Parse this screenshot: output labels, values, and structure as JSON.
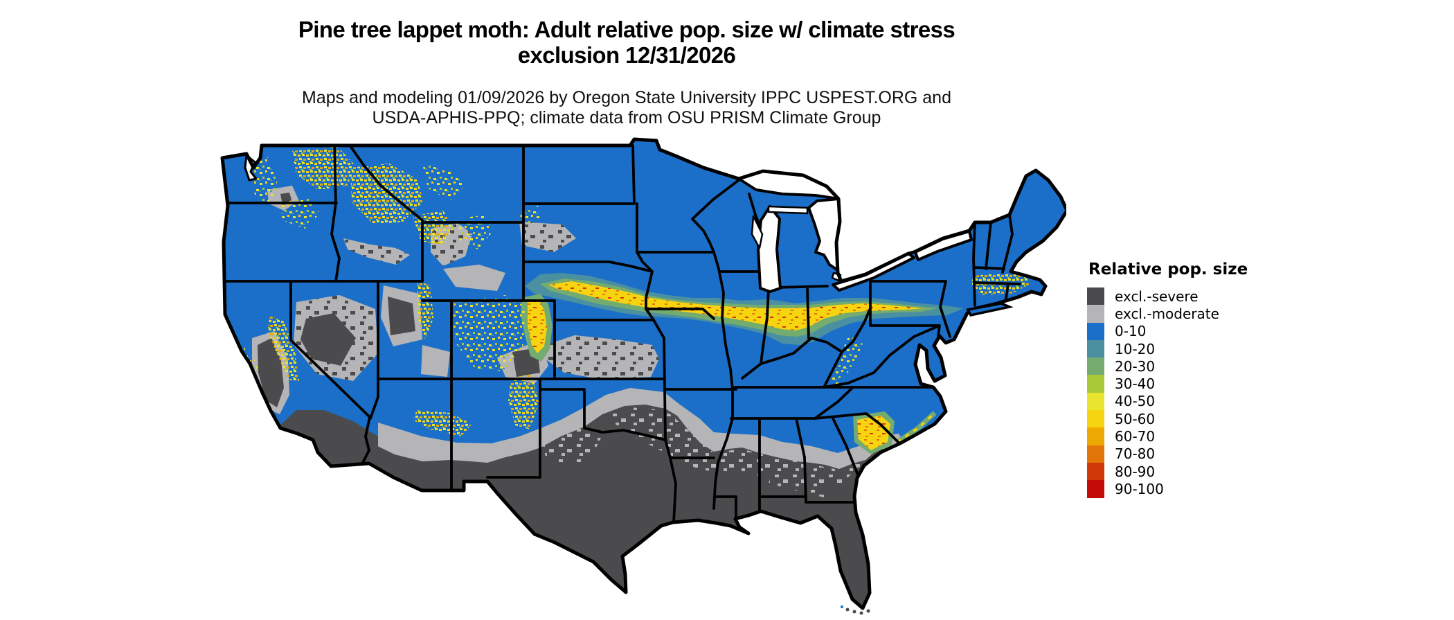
{
  "header": {
    "title_line1": "Pine tree lappet moth: Adult relative pop. size w/ climate stress",
    "title_line2": "exclusion 12/31/2026",
    "subtitle_line1": "Maps and modeling 01/09/2026 by Oregon State University IPPC USPEST.ORG and",
    "subtitle_line2": "USDA-APHIS-PPQ; climate data from OSU PRISM Climate Group"
  },
  "legend": {
    "title": "Relative pop. size",
    "items": [
      {
        "label": "excl.-severe",
        "color": "#4b4b4d"
      },
      {
        "label": "excl.-moderate",
        "color": "#b5b5b7"
      },
      {
        "label": "0-10",
        "color": "#1c6fc8"
      },
      {
        "label": "10-20",
        "color": "#4b90a1"
      },
      {
        "label": "20-30",
        "color": "#74ab6f"
      },
      {
        "label": "30-40",
        "color": "#aac938"
      },
      {
        "label": "40-50",
        "color": "#e9e52e"
      },
      {
        "label": "50-60",
        "color": "#f7d410"
      },
      {
        "label": "60-70",
        "color": "#eda902"
      },
      {
        "label": "70-80",
        "color": "#e1750a"
      },
      {
        "label": "80-90",
        "color": "#d2390a"
      },
      {
        "label": "90-100",
        "color": "#c50b08"
      }
    ]
  },
  "map": {
    "region": "Continental United States",
    "land_base_color": "#1c6fc8",
    "boundary_color": "#000000",
    "water_color": "#ffffff",
    "severe_exclusion_color": "#4b4b4d",
    "moderate_exclusion_color": "#b5b5b7"
  }
}
